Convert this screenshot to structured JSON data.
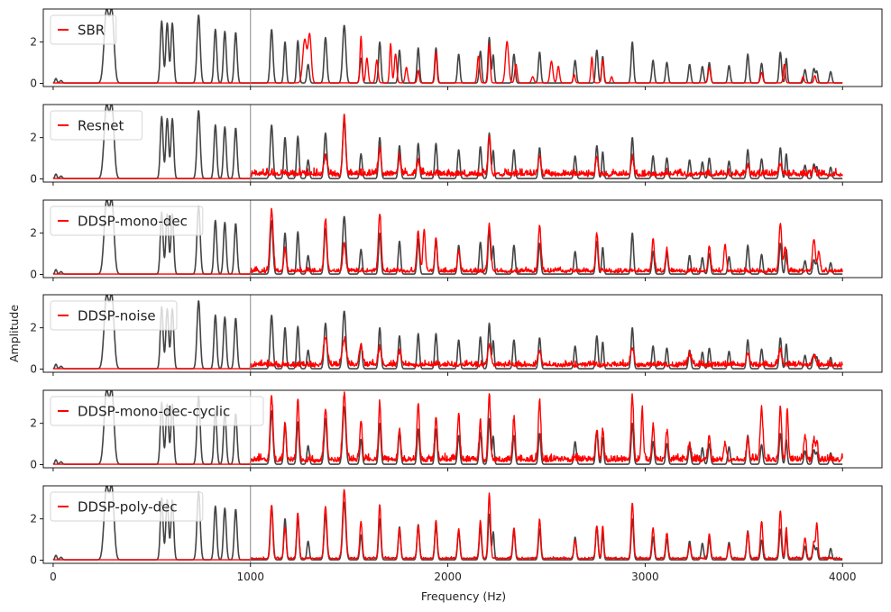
{
  "chart_data": {
    "type": "line",
    "xlabel": "Frequency (Hz)",
    "ylabel": "Amplitude",
    "xlim": [
      -50,
      4200
    ],
    "ylim": [
      -0.15,
      3.6
    ],
    "x_ticks": [
      0,
      1000,
      2000,
      3000,
      4000
    ],
    "y_ticks": [
      0,
      2
    ],
    "cutoff_line_x": 1000,
    "legend_placement": "top-left",
    "colors": {
      "reference": "#444444",
      "prediction": "#ff0000",
      "cutoff": "#888888"
    },
    "reference_peaks": [
      {
        "f": 14,
        "a": 0.22,
        "w": 5
      },
      {
        "f": 40,
        "a": 0.12,
        "w": 6
      },
      {
        "f": 270,
        "a": 3.45,
        "w": 12
      },
      {
        "f": 298,
        "a": 3.35,
        "w": 11
      },
      {
        "f": 550,
        "a": 3.0,
        "w": 7
      },
      {
        "f": 578,
        "a": 2.9,
        "w": 7
      },
      {
        "f": 604,
        "a": 2.9,
        "w": 7
      },
      {
        "f": 737,
        "a": 3.3,
        "w": 8
      },
      {
        "f": 822,
        "a": 2.6,
        "w": 7
      },
      {
        "f": 870,
        "a": 2.5,
        "w": 7
      },
      {
        "f": 925,
        "a": 2.45,
        "w": 7
      },
      {
        "f": 1107,
        "a": 2.6,
        "w": 7
      },
      {
        "f": 1175,
        "a": 2.0,
        "w": 6
      },
      {
        "f": 1240,
        "a": 2.05,
        "w": 6
      },
      {
        "f": 1292,
        "a": 0.9,
        "w": 6
      },
      {
        "f": 1380,
        "a": 2.2,
        "w": 7
      },
      {
        "f": 1475,
        "a": 2.8,
        "w": 8
      },
      {
        "f": 1560,
        "a": 1.2,
        "w": 6
      },
      {
        "f": 1655,
        "a": 2.0,
        "w": 6
      },
      {
        "f": 1755,
        "a": 1.6,
        "w": 6
      },
      {
        "f": 1850,
        "a": 1.7,
        "w": 6
      },
      {
        "f": 1940,
        "a": 1.7,
        "w": 6
      },
      {
        "f": 2055,
        "a": 1.4,
        "w": 6
      },
      {
        "f": 2165,
        "a": 1.55,
        "w": 6
      },
      {
        "f": 2210,
        "a": 2.2,
        "w": 6
      },
      {
        "f": 2230,
        "a": 1.35,
        "w": 5
      },
      {
        "f": 2335,
        "a": 1.4,
        "w": 6
      },
      {
        "f": 2465,
        "a": 1.5,
        "w": 6
      },
      {
        "f": 2645,
        "a": 1.1,
        "w": 6
      },
      {
        "f": 2755,
        "a": 1.6,
        "w": 6
      },
      {
        "f": 2785,
        "a": 1.3,
        "w": 5
      },
      {
        "f": 2935,
        "a": 2.0,
        "w": 6
      },
      {
        "f": 3040,
        "a": 1.1,
        "w": 6
      },
      {
        "f": 3110,
        "a": 1.0,
        "w": 6
      },
      {
        "f": 3225,
        "a": 0.9,
        "w": 6
      },
      {
        "f": 3290,
        "a": 0.8,
        "w": 6
      },
      {
        "f": 3325,
        "a": 1.0,
        "w": 6
      },
      {
        "f": 3425,
        "a": 0.85,
        "w": 6
      },
      {
        "f": 3520,
        "a": 1.4,
        "w": 6
      },
      {
        "f": 3590,
        "a": 0.95,
        "w": 6
      },
      {
        "f": 3685,
        "a": 1.5,
        "w": 6
      },
      {
        "f": 3715,
        "a": 1.2,
        "w": 5
      },
      {
        "f": 3810,
        "a": 0.65,
        "w": 6
      },
      {
        "f": 3855,
        "a": 0.7,
        "w": 6
      },
      {
        "f": 3870,
        "a": 0.55,
        "w": 5
      },
      {
        "f": 3940,
        "a": 0.55,
        "w": 6
      }
    ],
    "series": [
      {
        "name": "SBR",
        "noise": 0.0,
        "peaks": [
          [
            1275,
            2.1,
            10
          ],
          [
            1300,
            2.3,
            8
          ],
          [
            1560,
            2.25,
            5
          ],
          [
            1590,
            1.2,
            6
          ],
          [
            1640,
            1.1,
            6
          ],
          [
            1710,
            1.9,
            5
          ],
          [
            1735,
            1.4,
            6
          ],
          [
            1790,
            0.75,
            6
          ],
          [
            1850,
            0.6,
            5
          ],
          [
            1940,
            1.5,
            5
          ],
          [
            2155,
            1.3,
            6
          ],
          [
            2210,
            1.9,
            5
          ],
          [
            2300,
            2.0,
            8
          ],
          [
            2345,
            0.9,
            6
          ],
          [
            2430,
            0.3,
            6
          ],
          [
            2525,
            1.05,
            7
          ],
          [
            2560,
            0.8,
            6
          ],
          [
            2640,
            0.4,
            5
          ],
          [
            2730,
            1.25,
            5
          ],
          [
            2785,
            1.1,
            6
          ],
          [
            2830,
            0.3,
            5
          ],
          [
            3325,
            0.75,
            6
          ],
          [
            3590,
            0.5,
            6
          ],
          [
            3705,
            0.9,
            5
          ],
          [
            3800,
            0.3,
            5
          ],
          [
            3860,
            0.35,
            5
          ]
        ]
      },
      {
        "name": "Resnet",
        "noise": 0.55,
        "peaks": [
          [
            1475,
            2.85,
            7
          ],
          [
            1380,
            0.9,
            8
          ],
          [
            1655,
            1.2,
            7
          ],
          [
            1755,
            0.8,
            6
          ],
          [
            1850,
            0.7,
            6
          ],
          [
            2210,
            1.9,
            6
          ],
          [
            2465,
            0.9,
            6
          ],
          [
            2755,
            0.8,
            6
          ],
          [
            2935,
            0.9,
            6
          ],
          [
            3520,
            0.4,
            6
          ],
          [
            3685,
            0.45,
            6
          ],
          [
            3855,
            0.3,
            6
          ]
        ]
      },
      {
        "name": "DDSP-mono-dec",
        "noise": 0.35,
        "peaks": [
          [
            1107,
            3.0,
            8
          ],
          [
            1175,
            1.1,
            6
          ],
          [
            1380,
            2.5,
            7
          ],
          [
            1475,
            1.4,
            7
          ],
          [
            1655,
            2.8,
            7
          ],
          [
            1850,
            1.9,
            7
          ],
          [
            1880,
            2.0,
            6
          ],
          [
            1940,
            1.6,
            6
          ],
          [
            2055,
            1.0,
            6
          ],
          [
            2210,
            2.25,
            7
          ],
          [
            2465,
            2.2,
            7
          ],
          [
            2755,
            1.8,
            6
          ],
          [
            3040,
            1.6,
            6
          ],
          [
            3110,
            1.1,
            6
          ],
          [
            3325,
            1.2,
            6
          ],
          [
            3405,
            1.3,
            6
          ],
          [
            3685,
            2.3,
            7
          ],
          [
            3710,
            1.2,
            6
          ],
          [
            3855,
            1.6,
            7
          ],
          [
            3880,
            1.0,
            6
          ]
        ]
      },
      {
        "name": "DDSP-noise",
        "noise": 0.45,
        "peaks": [
          [
            1380,
            1.3,
            10
          ],
          [
            1475,
            1.2,
            10
          ],
          [
            1560,
            0.9,
            8
          ],
          [
            1655,
            0.8,
            8
          ],
          [
            1755,
            0.6,
            8
          ],
          [
            2210,
            0.9,
            8
          ],
          [
            2465,
            0.7,
            8
          ],
          [
            2935,
            0.8,
            8
          ],
          [
            3225,
            0.5,
            8
          ],
          [
            3520,
            0.6,
            8
          ],
          [
            3685,
            0.7,
            8
          ],
          [
            3855,
            0.5,
            8
          ]
        ]
      },
      {
        "name": "DDSP-mono-dec-cyclic",
        "noise": 0.55,
        "peaks": [
          [
            1107,
            3.1,
            7
          ],
          [
            1175,
            1.6,
            6
          ],
          [
            1240,
            3.0,
            6
          ],
          [
            1380,
            2.5,
            7
          ],
          [
            1475,
            3.2,
            8
          ],
          [
            1560,
            1.9,
            6
          ],
          [
            1655,
            2.8,
            6
          ],
          [
            1755,
            1.5,
            6
          ],
          [
            1850,
            2.8,
            6
          ],
          [
            1940,
            2.1,
            6
          ],
          [
            2055,
            2.2,
            6
          ],
          [
            2165,
            1.8,
            6
          ],
          [
            2210,
            3.2,
            6
          ],
          [
            2335,
            1.9,
            6
          ],
          [
            2465,
            2.9,
            6
          ],
          [
            2755,
            1.5,
            6
          ],
          [
            2785,
            1.5,
            5
          ],
          [
            2935,
            3.1,
            6
          ],
          [
            2985,
            2.5,
            5
          ],
          [
            3040,
            1.6,
            6
          ],
          [
            3110,
            1.4,
            6
          ],
          [
            3225,
            0.9,
            6
          ],
          [
            3325,
            1.2,
            6
          ],
          [
            3405,
            0.8,
            6
          ],
          [
            3520,
            1.0,
            6
          ],
          [
            3590,
            2.4,
            7
          ],
          [
            3685,
            2.6,
            6
          ],
          [
            3720,
            2.3,
            5
          ],
          [
            3810,
            1.2,
            6
          ],
          [
            3855,
            1.0,
            6
          ],
          [
            3870,
            0.9,
            5
          ]
        ]
      },
      {
        "name": "DDSP-poly-dec",
        "noise": 0.15,
        "peaks": [
          [
            1107,
            2.6,
            6
          ],
          [
            1175,
            1.5,
            6
          ],
          [
            1240,
            2.2,
            6
          ],
          [
            1380,
            2.5,
            7
          ],
          [
            1475,
            3.3,
            8
          ],
          [
            1560,
            1.8,
            6
          ],
          [
            1655,
            2.6,
            6
          ],
          [
            1755,
            1.4,
            6
          ],
          [
            1850,
            1.6,
            6
          ],
          [
            1940,
            1.8,
            6
          ],
          [
            2055,
            1.4,
            6
          ],
          [
            2165,
            1.8,
            6
          ],
          [
            2210,
            3.1,
            6
          ],
          [
            2335,
            1.5,
            6
          ],
          [
            2465,
            1.9,
            6
          ],
          [
            2645,
            0.9,
            6
          ],
          [
            2755,
            1.6,
            6
          ],
          [
            2785,
            1.6,
            5
          ],
          [
            2935,
            2.7,
            6
          ],
          [
            3040,
            1.5,
            6
          ],
          [
            3110,
            1.2,
            6
          ],
          [
            3225,
            0.6,
            6
          ],
          [
            3325,
            1.2,
            6
          ],
          [
            3425,
            0.6,
            6
          ],
          [
            3520,
            1.3,
            6
          ],
          [
            3590,
            1.8,
            6
          ],
          [
            3685,
            2.3,
            6
          ],
          [
            3715,
            1.5,
            5
          ],
          [
            3810,
            1.0,
            6
          ],
          [
            3855,
            0.8,
            6
          ],
          [
            3870,
            1.7,
            5
          ]
        ]
      }
    ]
  }
}
